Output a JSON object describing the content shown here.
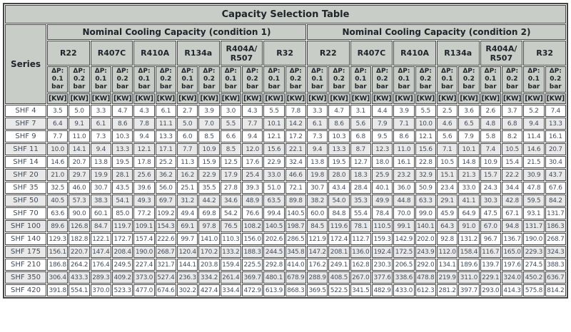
{
  "colors": {
    "header_bg": "#c8cdc7",
    "row_even_bg": "#ffffff",
    "row_odd_bg": "#e9e9e9",
    "border": "#454545",
    "header_text": "#20242b",
    "data_text": "#414d5c"
  },
  "chart_data": {
    "type": "table",
    "title": "Capacity Selection Table",
    "series_label": "Series",
    "unit_label": "[KW]",
    "condition_groups": [
      "Nominal Cooling Capacity (condition 1)",
      "Nominal Cooling Capacity (condition 2)"
    ],
    "refrigerants": [
      "R22",
      "R407C",
      "R410A",
      "R134a",
      "R404A/\nR507",
      "R32"
    ],
    "pressure_drop_labels": [
      "ΔP:\n0.1\nbar",
      "ΔP:\n0.2\nbar"
    ],
    "rows": [
      {
        "series": "SHF 4",
        "values": [
          "3.5",
          "5.0",
          "3.3",
          "4.7",
          "4.3",
          "6.1",
          "2.7",
          "3.9",
          "3.0",
          "4.3",
          "5.5",
          "7.8",
          "3.3",
          "4.7",
          "3.1",
          "4.4",
          "3.9",
          "5.5",
          "2.5",
          "3.6",
          "2.6",
          "3.7",
          "5.2",
          "7.4"
        ]
      },
      {
        "series": "SHF 7",
        "values": [
          "6.4",
          "9.1",
          "6.1",
          "8.6",
          "7.8",
          "11.1",
          "5.0",
          "7.0",
          "5.5",
          "7.7",
          "10.1",
          "14.2",
          "6.1",
          "8.6",
          "5.6",
          "7.9",
          "7.1",
          "10.0",
          "4.6",
          "6.5",
          "4.8",
          "6.8",
          "9.4",
          "13.3"
        ]
      },
      {
        "series": "SHF 9",
        "values": [
          "7.7",
          "11.0",
          "7.3",
          "10.3",
          "9.4",
          "13.3",
          "6.0",
          "8.5",
          "6.6",
          "9.4",
          "12.1",
          "17.2",
          "7.3",
          "10.3",
          "6.8",
          "9.5",
          "8.6",
          "12.1",
          "5.6",
          "7.9",
          "5.8",
          "8.2",
          "11.4",
          "16.1"
        ]
      },
      {
        "series": "SHF 11",
        "values": [
          "10.0",
          "14.1",
          "9.4",
          "13.3",
          "12.1",
          "17.1",
          "7.7",
          "10.9",
          "8.5",
          "12.0",
          "15.6",
          "22.1",
          "9.4",
          "13.3",
          "8.7",
          "12.3",
          "11.0",
          "15.6",
          "7.1",
          "10.1",
          "7.4",
          "10.5",
          "14.6",
          "20.7"
        ]
      },
      {
        "series": "SHF 14",
        "values": [
          "14.6",
          "20.7",
          "13.8",
          "19.5",
          "17.8",
          "25.2",
          "11.3",
          "15.9",
          "12.5",
          "17.6",
          "22.9",
          "32.4",
          "13.8",
          "19.5",
          "12.7",
          "18.0",
          "16.1",
          "22.8",
          "10.5",
          "14.8",
          "10.9",
          "15.4",
          "21.5",
          "30.4"
        ]
      },
      {
        "series": "SHF 20",
        "values": [
          "21.0",
          "29.7",
          "19.9",
          "28.1",
          "25.6",
          "36.2",
          "16.2",
          "22.9",
          "17.9",
          "25.4",
          "33.0",
          "46.6",
          "19.8",
          "28.0",
          "18.3",
          "25.9",
          "23.2",
          "32.9",
          "15.1",
          "21.3",
          "15.7",
          "22.2",
          "30.9",
          "43.7"
        ]
      },
      {
        "series": "SHF 35",
        "values": [
          "32.5",
          "46.0",
          "30.7",
          "43.5",
          "39.6",
          "56.0",
          "25.1",
          "35.5",
          "27.8",
          "39.3",
          "51.0",
          "72.1",
          "30.7",
          "43.4",
          "28.4",
          "40.1",
          "36.0",
          "50.9",
          "23.4",
          "33.0",
          "24.3",
          "34.4",
          "47.8",
          "67.6"
        ]
      },
      {
        "series": "SHF 50",
        "values": [
          "40.5",
          "57.3",
          "38.3",
          "54.1",
          "49.3",
          "69.7",
          "31.2",
          "44.2",
          "34.6",
          "48.9",
          "63.5",
          "89.8",
          "38.2",
          "54.0",
          "35.3",
          "49.9",
          "44.8",
          "63.3",
          "29.1",
          "41.1",
          "30.3",
          "42.8",
          "59.5",
          "84.2"
        ]
      },
      {
        "series": "SHF 70",
        "values": [
          "63.6",
          "90.0",
          "60.1",
          "85.0",
          "77.2",
          "109.2",
          "49.4",
          "69.8",
          "54.2",
          "76.6",
          "99.4",
          "140.5",
          "60.0",
          "84.8",
          "55.4",
          "78.4",
          "70.0",
          "99.0",
          "45.9",
          "64.9",
          "47.5",
          "67.1",
          "93.1",
          "131.7"
        ]
      },
      {
        "series": "SHF 100",
        "values": [
          "89.6",
          "126.8",
          "84.7",
          "119.7",
          "109.1",
          "154.3",
          "69.1",
          "97.8",
          "76.5",
          "108.2",
          "140.5",
          "198.7",
          "84.5",
          "119.6",
          "78.1",
          "110.5",
          "99.1",
          "140.1",
          "64.3",
          "91.0",
          "67.0",
          "94.8",
          "131.7",
          "186.3"
        ]
      },
      {
        "series": "SHF 140",
        "values": [
          "129.3",
          "182.8",
          "122.1",
          "172.7",
          "157.4",
          "222.6",
          "99.7",
          "141.0",
          "110.3",
          "156.0",
          "202.6",
          "286.5",
          "121.9",
          "172.4",
          "112.7",
          "159.3",
          "142.9",
          "202.0",
          "92.8",
          "131.2",
          "96.7",
          "136.7",
          "190.0",
          "268.7"
        ]
      },
      {
        "series": "SHF 175",
        "values": [
          "156.1",
          "220.7",
          "147.4",
          "208.4",
          "190.0",
          "268.7",
          "120.4",
          "170.2",
          "133.2",
          "188.3",
          "244.5",
          "345.8",
          "147.2",
          "208.1",
          "136.0",
          "192.4",
          "172.5",
          "243.9",
          "112.0",
          "158.4",
          "116.7",
          "165.0",
          "229.3",
          "324.3"
        ]
      },
      {
        "series": "SHF 210",
        "values": [
          "186.8",
          "264.2",
          "176.4",
          "249.5",
          "227.4",
          "321.7",
          "144.1",
          "203.8",
          "159.4",
          "225.5",
          "292.8",
          "414.0",
          "176.2",
          "249.1",
          "162.8",
          "230.3",
          "206.5",
          "292.0",
          "134.1",
          "189.6",
          "139.7",
          "197.6",
          "274.5",
          "388.3"
        ]
      },
      {
        "series": "SHF 350",
        "values": [
          "306.4",
          "433.3",
          "289.3",
          "409.2",
          "373.0",
          "527.4",
          "236.3",
          "334.2",
          "261.4",
          "369.7",
          "480.1",
          "678.9",
          "288.9",
          "408.5",
          "267.0",
          "377.6",
          "338.6",
          "478.8",
          "219.9",
          "311.0",
          "229.1",
          "324.0",
          "450.2",
          "636.7"
        ]
      },
      {
        "series": "SHF 420",
        "values": [
          "391.8",
          "554.1",
          "370.0",
          "523.3",
          "477.0",
          "674.6",
          "302.2",
          "427.4",
          "334.4",
          "472.9",
          "613.9",
          "868.3",
          "369.5",
          "522.5",
          "341.5",
          "482.9",
          "433.0",
          "612.3",
          "281.2",
          "397.7",
          "293.0",
          "414.3",
          "575.8",
          "814.2"
        ]
      }
    ]
  }
}
